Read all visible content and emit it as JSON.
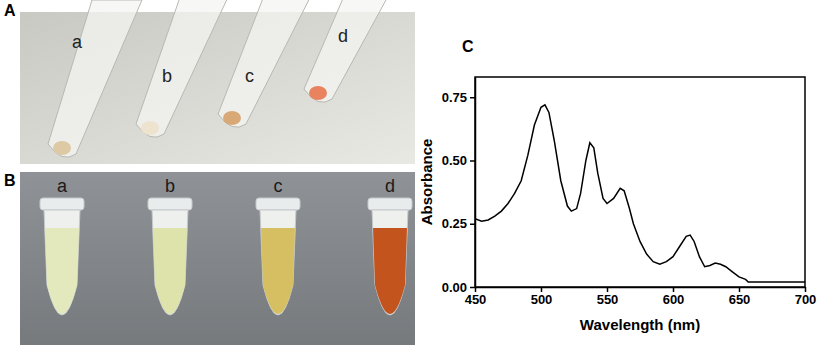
{
  "panels": {
    "A": {
      "label": "A",
      "tubes": [
        "a",
        "b",
        "c",
        "d"
      ]
    },
    "B": {
      "label": "B",
      "tubes": [
        "a",
        "b",
        "c",
        "d"
      ]
    },
    "C": {
      "label": "C"
    }
  },
  "chart_data": {
    "type": "line",
    "color": "#000000",
    "x_label": "Wavelength (nm)",
    "y_label": "Absorbance",
    "x": [
      450,
      455,
      460,
      465,
      470,
      475,
      480,
      485,
      490,
      495,
      500,
      503,
      506,
      510,
      515,
      520,
      523,
      527,
      530,
      534,
      537,
      540,
      543,
      547,
      550,
      555,
      560,
      563,
      567,
      570,
      575,
      580,
      585,
      590,
      595,
      600,
      605,
      610,
      613,
      616,
      620,
      624,
      628,
      632,
      636,
      640,
      645,
      650,
      655,
      657,
      660,
      680,
      700
    ],
    "values": [
      0.27,
      0.26,
      0.265,
      0.28,
      0.3,
      0.33,
      0.37,
      0.42,
      0.52,
      0.64,
      0.71,
      0.72,
      0.69,
      0.58,
      0.42,
      0.32,
      0.3,
      0.31,
      0.37,
      0.5,
      0.57,
      0.55,
      0.45,
      0.35,
      0.33,
      0.35,
      0.39,
      0.38,
      0.31,
      0.25,
      0.18,
      0.13,
      0.1,
      0.09,
      0.1,
      0.12,
      0.16,
      0.2,
      0.205,
      0.18,
      0.12,
      0.08,
      0.085,
      0.095,
      0.09,
      0.08,
      0.06,
      0.04,
      0.03,
      0.02,
      0.02,
      0.02,
      0.02
    ],
    "xlim": [
      450,
      700
    ],
    "xticks": [
      450,
      500,
      550,
      600,
      650,
      700
    ],
    "ylim": [
      0,
      0.83
    ],
    "yticks": [
      {
        "value": 0,
        "label": "0.00"
      },
      {
        "value": 0.25,
        "label": "0.25"
      },
      {
        "value": 0.5,
        "label": "0.50"
      },
      {
        "value": 0.75,
        "label": "0.75"
      }
    ],
    "grid": false
  }
}
